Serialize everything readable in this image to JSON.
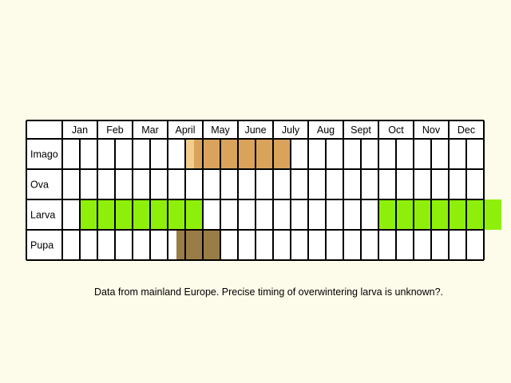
{
  "chart_data": {
    "type": "table",
    "months": [
      "Jan",
      "Feb",
      "Mar",
      "April",
      "May",
      "June",
      "July",
      "Aug",
      "Sept",
      "Oct",
      "Nov",
      "Dec"
    ],
    "stages": [
      {
        "name": "Imago",
        "periods": [
          {
            "start": 7.0,
            "end": 7.5,
            "color": "#f2cd8e"
          },
          {
            "start": 7.5,
            "end": 13.0,
            "color": "#d9a35c"
          }
        ]
      },
      {
        "name": "Ova",
        "periods": []
      },
      {
        "name": "Larva",
        "periods": [
          {
            "start": 1.0,
            "end": 8.0,
            "color": "#8ef00a"
          },
          {
            "start": 18.0,
            "end": 25.0,
            "color": "#8ef00a"
          }
        ]
      },
      {
        "name": "Pupa",
        "periods": [
          {
            "start": 6.5,
            "end": 9.0,
            "color": "#9a7c46"
          }
        ]
      }
    ],
    "subdivisions_per_month": 2
  },
  "note": "Data from mainland Europe. Precise timing of overwintering larva is unknown?."
}
